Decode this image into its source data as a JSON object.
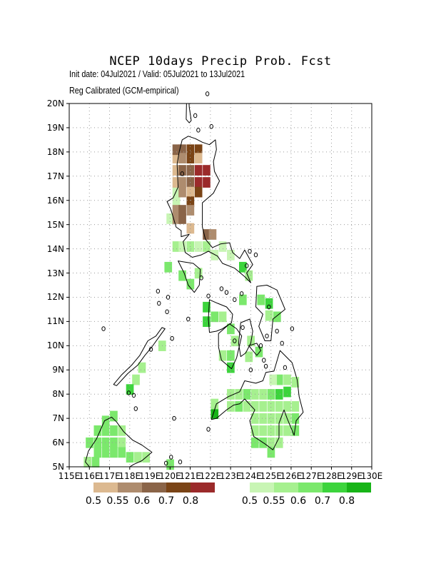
{
  "title": "NCEP 10days Precip Prob. Fcst",
  "subtitle_line1": "Init date: 04Jul2021 / Valid: 05Jul2021 to 13Jul2021",
  "subtitle_line2": "Reg Calibrated (GCM-empirical)",
  "y_labels": [
    "20N",
    "19N",
    "18N",
    "17N",
    "16N",
    "15N",
    "14N",
    "13N",
    "12N",
    "11N",
    "10N",
    "9N",
    "8N",
    "7N",
    "6N",
    "5N"
  ],
  "x_labels": [
    "115E",
    "116E",
    "117E",
    "118E",
    "119E",
    "120E",
    "121E",
    "122E",
    "123E",
    "124E",
    "125E",
    "126E",
    "127E",
    "128E",
    "129E",
    "130E"
  ],
  "map_extent": {
    "lon": [
      115,
      130
    ],
    "lat": [
      5,
      20
    ]
  },
  "dry_legend": {
    "colors": [
      "#dcb990",
      "#ae8c6e",
      "#8a6448",
      "#7a4416",
      "#9b2a2a"
    ],
    "labels": [
      "0.5",
      "0.55",
      "0.6",
      "0.7",
      "0.8"
    ]
  },
  "wet_legend": {
    "colors": [
      "#c8f5b4",
      "#a6f08f",
      "#7be86c",
      "#3cd43c",
      "#17b417"
    ],
    "labels": [
      "0.5",
      "0.55",
      "0.6",
      "0.7",
      "0.8"
    ]
  },
  "colors": {
    "dry": [
      "#dcb990",
      "#ae8c6e",
      "#8a6448",
      "#7a4416",
      "#9b2a2a"
    ],
    "wet": [
      "#c8f5b4",
      "#a6f08f",
      "#7be86c",
      "#3cd43c",
      "#17b417"
    ],
    "grid": "#9a9a9a",
    "coast": "#000000"
  },
  "dry_cells": [
    [
      120.3,
      17.75,
      0
    ],
    [
      120.3,
      17.25,
      0
    ],
    [
      120.3,
      16.75,
      0
    ],
    [
      120.6,
      16.75,
      1
    ],
    [
      120.6,
      17.25,
      2
    ],
    [
      120.3,
      18.1,
      2
    ],
    [
      120.6,
      18.1,
      2
    ],
    [
      121.0,
      18.1,
      3
    ],
    [
      121.4,
      18.1,
      3
    ],
    [
      120.6,
      17.75,
      1
    ],
    [
      121.0,
      17.75,
      3
    ],
    [
      121.4,
      17.75,
      0
    ],
    [
      121.0,
      17.25,
      2
    ],
    [
      121.4,
      17.25,
      4
    ],
    [
      121.8,
      17.25,
      4
    ],
    [
      121.4,
      16.75,
      4
    ],
    [
      121.8,
      16.75,
      4
    ],
    [
      120.6,
      16.35,
      1
    ],
    [
      121.0,
      16.75,
      2
    ],
    [
      121.4,
      16.35,
      3
    ],
    [
      121.0,
      16.35,
      0
    ],
    [
      121.0,
      15.95,
      3
    ],
    [
      120.3,
      15.6,
      1
    ],
    [
      120.6,
      15.6,
      2
    ],
    [
      121.0,
      15.6,
      1
    ],
    [
      120.3,
      15.25,
      1
    ],
    [
      120.6,
      15.25,
      2
    ],
    [
      121.0,
      14.85,
      0
    ],
    [
      121.8,
      14.6,
      2
    ],
    [
      122.1,
      14.6,
      1
    ]
  ],
  "wet_cells": [
    [
      120.3,
      16.35,
      0
    ],
    [
      120.3,
      15.95,
      0
    ],
    [
      120.0,
      15.25,
      0
    ],
    [
      120.3,
      14.1,
      1
    ],
    [
      120.6,
      14.1,
      0
    ],
    [
      121.0,
      14.1,
      1
    ],
    [
      121.4,
      14.1,
      0
    ],
    [
      121.8,
      14.1,
      1
    ],
    [
      122.2,
      13.75,
      0
    ],
    [
      122.6,
      14.1,
      0
    ],
    [
      123.0,
      13.75,
      0
    ],
    [
      119.9,
      13.25,
      2
    ],
    [
      120.6,
      12.9,
      2
    ],
    [
      121.0,
      12.55,
      2
    ],
    [
      121.4,
      13.0,
      1
    ],
    [
      123.6,
      13.25,
      3
    ],
    [
      123.9,
      12.9,
      1
    ],
    [
      123.6,
      11.9,
      2
    ],
    [
      124.5,
      11.9,
      2
    ],
    [
      124.9,
      11.75,
      3
    ],
    [
      124.9,
      11.25,
      1
    ],
    [
      125.3,
      11.2,
      2
    ],
    [
      121.8,
      11.6,
      3
    ],
    [
      121.8,
      11.0,
      3
    ],
    [
      122.2,
      11.2,
      2
    ],
    [
      122.6,
      11.2,
      1
    ],
    [
      123.0,
      10.7,
      2
    ],
    [
      123.2,
      10.2,
      1
    ],
    [
      124.0,
      10.2,
      1
    ],
    [
      124.4,
      9.75,
      2
    ],
    [
      122.6,
      9.6,
      1
    ],
    [
      123.0,
      9.6,
      2
    ],
    [
      123.0,
      9.1,
      3
    ],
    [
      123.9,
      9.55,
      1
    ],
    [
      119.6,
      10.0,
      1
    ],
    [
      118.6,
      9.1,
      1
    ],
    [
      118.3,
      8.6,
      1
    ],
    [
      118.0,
      8.2,
      3
    ],
    [
      123.0,
      8.0,
      1
    ],
    [
      123.4,
      8.0,
      1
    ],
    [
      123.8,
      8.0,
      2
    ],
    [
      124.2,
      8.0,
      1
    ],
    [
      124.6,
      8.0,
      1
    ],
    [
      125.0,
      8.0,
      2
    ],
    [
      125.4,
      8.0,
      3
    ],
    [
      125.8,
      8.1,
      3
    ],
    [
      125.4,
      8.6,
      2
    ],
    [
      125.8,
      8.6,
      1
    ],
    [
      126.2,
      8.5,
      1
    ],
    [
      125.1,
      8.6,
      0
    ],
    [
      122.2,
      7.2,
      4
    ],
    [
      122.2,
      7.6,
      1
    ],
    [
      123.0,
      7.5,
      1
    ],
    [
      123.4,
      7.5,
      2
    ],
    [
      123.8,
      7.5,
      1
    ],
    [
      124.2,
      7.5,
      1
    ],
    [
      124.6,
      7.5,
      1
    ],
    [
      125.0,
      7.5,
      1
    ],
    [
      125.4,
      7.5,
      1
    ],
    [
      125.8,
      7.5,
      1
    ],
    [
      126.2,
      7.5,
      1
    ],
    [
      126.2,
      7.0,
      2
    ],
    [
      124.2,
      7.0,
      1
    ],
    [
      124.6,
      7.0,
      1
    ],
    [
      125.0,
      7.0,
      1
    ],
    [
      125.4,
      7.0,
      1
    ],
    [
      125.8,
      7.0,
      1
    ],
    [
      124.2,
      6.5,
      1
    ],
    [
      124.6,
      6.5,
      1
    ],
    [
      125.0,
      6.5,
      1
    ],
    [
      125.4,
      6.5,
      1
    ],
    [
      125.8,
      6.5,
      1
    ],
    [
      126.2,
      6.5,
      2
    ],
    [
      124.2,
      6.0,
      2
    ],
    [
      124.6,
      6.0,
      2
    ],
    [
      125.0,
      6.0,
      1
    ],
    [
      125.4,
      6.0,
      1
    ],
    [
      125.0,
      5.6,
      2
    ],
    [
      116.8,
      6.9,
      2
    ],
    [
      117.2,
      7.1,
      2
    ],
    [
      116.4,
      6.5,
      2
    ],
    [
      116.8,
      6.5,
      2
    ],
    [
      117.2,
      6.5,
      2
    ],
    [
      117.6,
      6.5,
      1
    ],
    [
      116.0,
      6.0,
      2
    ],
    [
      116.4,
      6.0,
      2
    ],
    [
      116.8,
      6.0,
      2
    ],
    [
      117.2,
      6.0,
      2
    ],
    [
      117.6,
      6.0,
      1
    ],
    [
      116.4,
      5.6,
      2
    ],
    [
      116.8,
      5.6,
      2
    ],
    [
      117.2,
      5.6,
      2
    ],
    [
      117.6,
      5.6,
      2
    ],
    [
      118.0,
      5.4,
      2
    ],
    [
      118.4,
      5.4,
      1
    ],
    [
      118.8,
      5.4,
      1
    ],
    [
      115.9,
      5.2,
      1
    ],
    [
      116.3,
      5.2,
      2
    ],
    [
      120.0,
      5.1,
      2
    ]
  ],
  "coastlines": [
    [
      [
        120.6,
        18.5
      ],
      [
        120.9,
        18.65
      ],
      [
        121.25,
        18.55
      ],
      [
        121.6,
        18.4
      ],
      [
        121.95,
        18.3
      ],
      [
        122.25,
        18.5
      ],
      [
        122.3,
        18.1
      ],
      [
        122.15,
        17.6
      ],
      [
        122.2,
        17.2
      ],
      [
        122.45,
        16.8
      ],
      [
        122.15,
        16.3
      ],
      [
        121.6,
        15.9
      ],
      [
        121.6,
        15.3
      ],
      [
        121.6,
        14.9
      ],
      [
        121.75,
        14.4
      ],
      [
        122.1,
        14.05
      ],
      [
        122.5,
        14.2
      ],
      [
        122.95,
        14.25
      ],
      [
        123.1,
        13.85
      ],
      [
        123.45,
        13.6
      ],
      [
        123.7,
        13.95
      ],
      [
        124.1,
        13.35
      ],
      [
        123.8,
        13.0
      ],
      [
        124.0,
        12.6
      ],
      [
        123.7,
        12.85
      ],
      [
        123.2,
        13.2
      ],
      [
        122.6,
        13.4
      ],
      [
        122.35,
        13.7
      ],
      [
        121.9,
        13.9
      ],
      [
        121.55,
        13.75
      ],
      [
        121.1,
        13.65
      ],
      [
        120.75,
        13.85
      ],
      [
        120.65,
        14.3
      ],
      [
        120.95,
        14.6
      ],
      [
        120.55,
        14.5
      ],
      [
        120.55,
        14.75
      ],
      [
        120.3,
        14.9
      ],
      [
        120.05,
        15.6
      ],
      [
        119.85,
        15.95
      ],
      [
        120.15,
        16.1
      ],
      [
        120.4,
        16.55
      ],
      [
        120.35,
        17.5
      ],
      [
        120.45,
        18.0
      ],
      [
        120.6,
        18.5
      ]
    ],
    [
      [
        121.15,
        13.4
      ],
      [
        121.5,
        13.15
      ],
      [
        121.45,
        12.5
      ],
      [
        121.2,
        12.2
      ],
      [
        120.9,
        12.5
      ],
      [
        120.7,
        13.0
      ],
      [
        120.4,
        13.5
      ],
      [
        120.75,
        13.45
      ],
      [
        121.15,
        13.4
      ]
    ],
    [
      [
        117.2,
        8.4
      ],
      [
        117.6,
        8.8
      ],
      [
        118.1,
        9.2
      ],
      [
        118.5,
        9.6
      ],
      [
        118.9,
        10.2
      ],
      [
        119.3,
        10.4
      ],
      [
        119.6,
        10.75
      ],
      [
        119.75,
        10.7
      ],
      [
        119.4,
        10.3
      ],
      [
        119.1,
        9.95
      ],
      [
        118.75,
        9.6
      ],
      [
        118.4,
        9.2
      ],
      [
        117.9,
        8.85
      ],
      [
        117.35,
        8.35
      ],
      [
        117.2,
        8.4
      ]
    ],
    [
      [
        121.95,
        11.9
      ],
      [
        122.35,
        11.75
      ],
      [
        122.8,
        11.6
      ],
      [
        123.1,
        11.3
      ],
      [
        123.05,
        10.95
      ],
      [
        122.6,
        10.7
      ],
      [
        122.3,
        10.6
      ],
      [
        121.95,
        10.55
      ],
      [
        121.9,
        11.1
      ],
      [
        121.95,
        11.9
      ]
    ],
    [
      [
        122.4,
        10.5
      ],
      [
        122.95,
        10.9
      ],
      [
        123.3,
        10.7
      ],
      [
        123.55,
        10.4
      ],
      [
        123.3,
        9.5
      ],
      [
        123.05,
        9.05
      ],
      [
        122.55,
        9.4
      ],
      [
        122.4,
        9.95
      ],
      [
        122.4,
        10.5
      ]
    ],
    [
      [
        123.5,
        10.95
      ],
      [
        123.95,
        11.1
      ],
      [
        124.1,
        10.6
      ],
      [
        124.0,
        10.1
      ],
      [
        123.75,
        9.7
      ],
      [
        123.5,
        9.55
      ],
      [
        123.4,
        10.1
      ],
      [
        123.5,
        10.95
      ]
    ],
    [
      [
        124.3,
        12.45
      ],
      [
        124.8,
        12.5
      ],
      [
        125.3,
        12.3
      ],
      [
        125.7,
        11.5
      ],
      [
        125.1,
        11.1
      ],
      [
        125.0,
        10.2
      ],
      [
        124.7,
        10.2
      ],
      [
        124.4,
        10.8
      ],
      [
        124.6,
        11.3
      ],
      [
        124.25,
        11.6
      ],
      [
        124.3,
        12.45
      ]
    ],
    [
      [
        123.9,
        10.0
      ],
      [
        124.3,
        10.1
      ],
      [
        124.5,
        9.8
      ],
      [
        124.3,
        9.6
      ],
      [
        123.9,
        10.0
      ]
    ],
    [
      [
        125.45,
        9.8
      ],
      [
        126.05,
        9.3
      ],
      [
        126.3,
        8.6
      ],
      [
        126.4,
        7.9
      ],
      [
        126.6,
        7.25
      ],
      [
        126.25,
        6.9
      ],
      [
        126.15,
        6.3
      ],
      [
        125.8,
        7.0
      ],
      [
        125.65,
        7.35
      ],
      [
        125.4,
        6.8
      ],
      [
        125.4,
        6.2
      ],
      [
        125.1,
        5.7
      ],
      [
        124.7,
        5.95
      ],
      [
        124.15,
        6.25
      ],
      [
        123.95,
        6.9
      ],
      [
        124.2,
        7.35
      ],
      [
        123.7,
        7.8
      ],
      [
        123.45,
        7.6
      ],
      [
        123.15,
        7.55
      ],
      [
        122.8,
        7.35
      ],
      [
        122.3,
        7.0
      ],
      [
        122.05,
        6.95
      ],
      [
        122.3,
        7.6
      ],
      [
        122.9,
        7.9
      ],
      [
        123.45,
        8.1
      ],
      [
        123.7,
        8.55
      ],
      [
        124.25,
        8.45
      ],
      [
        124.6,
        8.55
      ],
      [
        124.75,
        8.9
      ],
      [
        125.15,
        8.95
      ],
      [
        125.45,
        9.8
      ]
    ],
    [
      [
        117.1,
        7.05
      ],
      [
        117.35,
        6.85
      ],
      [
        117.7,
        6.45
      ],
      [
        118.15,
        6.1
      ],
      [
        118.6,
        5.9
      ],
      [
        119.1,
        5.6
      ],
      [
        118.6,
        5.25
      ],
      [
        118.2,
        5.1
      ],
      [
        117.9,
        4.95
      ],
      [
        116.0,
        5.0
      ],
      [
        115.8,
        5.2
      ],
      [
        115.95,
        5.65
      ],
      [
        116.35,
        6.15
      ],
      [
        116.75,
        6.9
      ],
      [
        117.1,
        7.05
      ]
    ],
    [
      [
        120.85,
        21.4
      ],
      [
        120.95,
        19.85
      ],
      [
        121.05,
        19.3
      ],
      [
        120.95,
        19.2
      ],
      [
        120.8,
        19.35
      ],
      [
        120.85,
        21.4
      ]
    ]
  ],
  "small_islands": [
    [
      122.05,
      19.05
    ],
    [
      121.25,
      19.5
    ],
    [
      121.85,
      20.4
    ],
    [
      121.4,
      18.9
    ],
    [
      120.6,
      17.1
    ],
    [
      119.9,
      12.0
    ],
    [
      120.9,
      11.1
    ],
    [
      119.85,
      11.4
    ],
    [
      119.45,
      11.75
    ],
    [
      119.4,
      12.25
    ],
    [
      120.1,
      10.3
    ],
    [
      123.8,
      13.3
    ],
    [
      122.8,
      12.2
    ],
    [
      123.55,
      12.15
    ],
    [
      122.55,
      12.35
    ],
    [
      121.55,
      12.8
    ],
    [
      121.9,
      12.05
    ],
    [
      123.2,
      11.9
    ],
    [
      123.6,
      10.75
    ],
    [
      124.5,
      10.0
    ],
    [
      125.55,
      10.1
    ],
    [
      125.7,
      9.1
    ],
    [
      124.0,
      9.0
    ],
    [
      124.75,
      9.15
    ],
    [
      121.9,
      6.55
    ],
    [
      123.2,
      10.2
    ],
    [
      126.05,
      10.7
    ],
    [
      119.8,
      5.15
    ],
    [
      120.05,
      5.4
    ],
    [
      120.5,
      5.2
    ],
    [
      120.2,
      7.0
    ],
    [
      119.05,
      9.85
    ],
    [
      118.3,
      7.4
    ],
    [
      116.7,
      10.7
    ],
    [
      117.95,
      8.05
    ],
    [
      118.2,
      7.95
    ],
    [
      124.9,
      11.6
    ],
    [
      124.65,
      9.4
    ],
    [
      123.95,
      13.9
    ],
    [
      124.25,
      13.75
    ],
    [
      125.3,
      10.6
    ],
    [
      124.8,
      10.4
    ]
  ]
}
